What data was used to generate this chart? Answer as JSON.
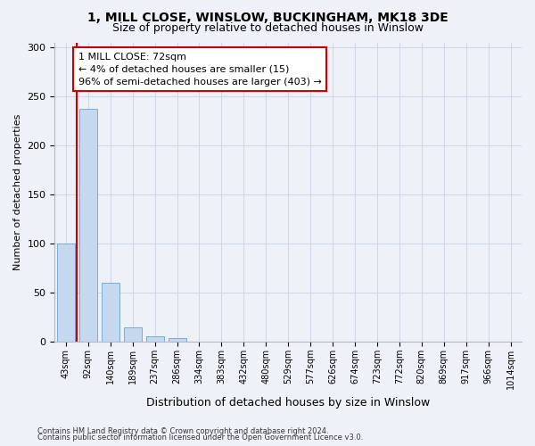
{
  "title": "1, MILL CLOSE, WINSLOW, BUCKINGHAM, MK18 3DE",
  "subtitle": "Size of property relative to detached houses in Winslow",
  "xlabel": "Distribution of detached houses by size in Winslow",
  "ylabel": "Number of detached properties",
  "categories": [
    "43sqm",
    "92sqm",
    "140sqm",
    "189sqm",
    "237sqm",
    "286sqm",
    "334sqm",
    "383sqm",
    "432sqm",
    "480sqm",
    "529sqm",
    "577sqm",
    "626sqm",
    "674sqm",
    "723sqm",
    "772sqm",
    "820sqm",
    "869sqm",
    "917sqm",
    "966sqm",
    "1014sqm"
  ],
  "bar_values": [
    100,
    237,
    60,
    15,
    6,
    4,
    0,
    0,
    0,
    0,
    0,
    0,
    0,
    0,
    0,
    0,
    0,
    0,
    0,
    0,
    0
  ],
  "bar_color": "#c5d8f0",
  "bar_edgecolor": "#7aadd4",
  "annotation_line1": "1 MILL CLOSE: 72sqm",
  "annotation_line2": "← 4% of detached houses are smaller (15)",
  "annotation_line3": "96% of semi-detached houses are larger (403) →",
  "annotation_box_edgecolor": "#cc0000",
  "property_line_color": "#cc0000",
  "ylim": [
    0,
    305
  ],
  "yticks": [
    0,
    50,
    100,
    150,
    200,
    250,
    300
  ],
  "grid_color": "#d0d8e8",
  "background_color": "#eef2f8",
  "plot_bg_color": "#eef2f8",
  "footnote1": "Contains HM Land Registry data © Crown copyright and database right 2024.",
  "footnote2": "Contains public sector information licensed under the Open Government Licence v3.0.",
  "title_fontsize": 10,
  "subtitle_fontsize": 9,
  "xlabel_fontsize": 9,
  "ylabel_fontsize": 8,
  "annot_fontsize": 8,
  "tick_fontsize": 7,
  "footnote_fontsize": 6
}
